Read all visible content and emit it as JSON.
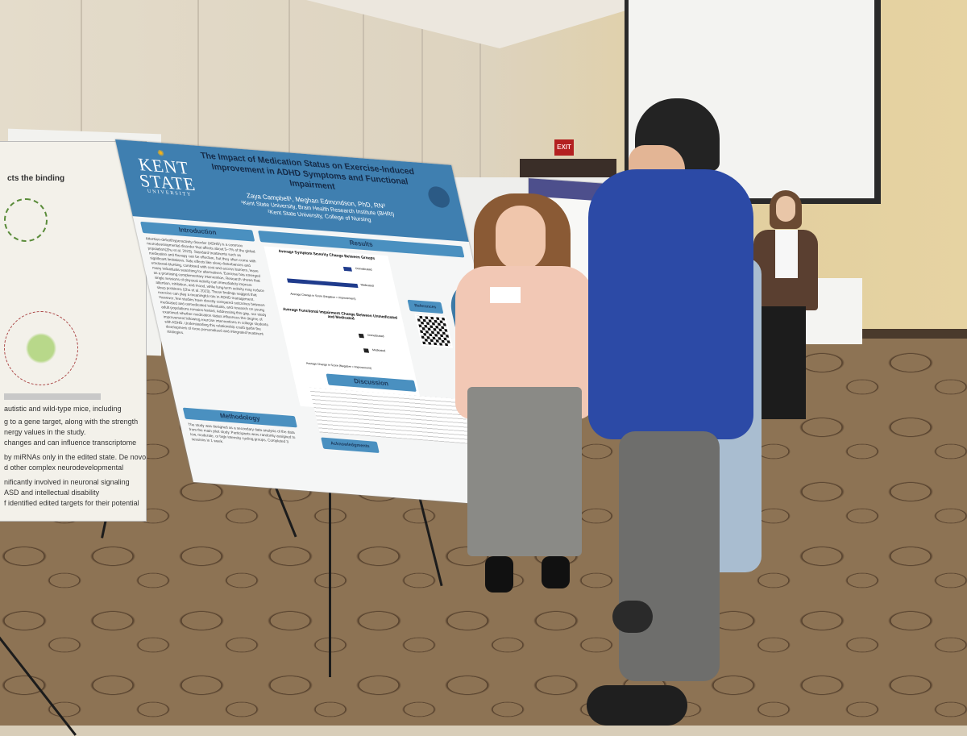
{
  "scene": {
    "exit_sign": "EXIT",
    "main_poster": {
      "logo": {
        "line1": "KENT",
        "line2": "STATE",
        "line3": "UNIVERSITY"
      },
      "title": "The Impact of Medication Status on Exercise-Induced Improvement in ADHD Symptoms and Functional Impairment",
      "authors": "Zaya Campbell¹, Meghan Edmondson, PhD, RN²",
      "affiliation_1": "¹Kent State University, Brain Health Research Institute (BHRI)",
      "affiliation_2": "²Kent State University, College of Nursing",
      "sections": {
        "introduction": "Introduction",
        "results": "Results",
        "methodology": "Methodology",
        "discussion": "Discussion",
        "references": "References",
        "acknowledgments": "Acknowledgments"
      },
      "intro_text": "Attention-deficit/hyperactivity disorder (ADHD) is a common neurodevelopmental disorder that affects about 5–7% of the global population(Zhu et al. 2023). Standard treatments such as medication and therapy can be effective, but they often come with significant limitations. Side effects like sleep disturbances and emotional blunting, combined with cost and access barriers, leave many individuals searching for alternatives. Exercise has emerged as a promising complementary intervention. Research shows that single sessions of physical activity can immediately improve attention, inhibition, and mood, while long-term activity may reduce sleep problems (Zhu et al. 2023). These findings suggest that exercise can play a meaningful role in ADHD management. However, few studies have directly compared outcomes between medicated and unmedicated individuals, and research on young adult populations remains limited. Addressing this gap, our study examined whether medication status influences the degree of improvement following exercise interventions in college students with ADHD. Understanding this relationship could guide the development of more personalized and integrated treatment strategies.",
      "methodology_text": "The study was designed as a secondary data analysis of the data from the main pilot study. Participants were randomly assigned to low, moderate, or high intensity cycling groups. Completed 3 sessions in 1 week.",
      "chart1_title": "Average Symptom Severity Change Between Groups",
      "chart1_xlabel": "Average Change in Score (Negative = Improvement)",
      "chart2_title": "Average Functional Impairment Change Between Unmedicated and Medicated",
      "chart2_xlabel": "Average Change in Score (Negative = Improvement)",
      "series_unmedicated": "Unmedicated",
      "series_medicated": "Medicated"
    },
    "left_poster_lines": [
      "autistic and wild-type mice, including",
      "g to a gene target, along with the strength",
      "nergy values in the study.",
      "changes and can influence transcriptome",
      "by miRNAs only in the edited state. De novo",
      "d other complex neurodevelopmental",
      "nificantly involved in neuronal signaling",
      "ASD and intellectual disability",
      "f identified edited targets for their potential"
    ],
    "left_poster_heading": "cts the binding"
  }
}
